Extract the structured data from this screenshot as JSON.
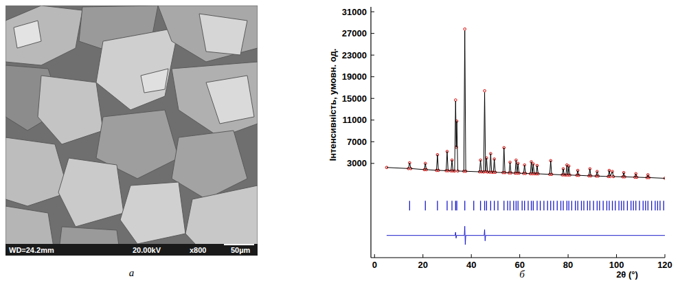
{
  "image": {
    "info": [
      "WD=24.2mm",
      "20.00kV",
      "x800",
      "50µm"
    ],
    "label": "а"
  },
  "chart_label": "б",
  "chart_data": {
    "type": "line",
    "y_label": "Інтенсивність, умовн. од.",
    "x_label": "2θ (°)",
    "xlim": [
      -1.5,
      120
    ],
    "xticks": [
      0,
      20,
      40,
      60,
      80,
      100,
      120
    ],
    "ylim": [
      -14400,
      31900
    ],
    "yticks": [
      3000,
      7000,
      11000,
      15000,
      19000,
      23000,
      27000,
      31000
    ],
    "grid": false,
    "series": [
      {
        "type": "scatter",
        "marker": "circle",
        "color": "#d40000",
        "x": [
          5,
          14.0,
          14.5,
          15.0,
          20.6,
          21.0,
          21.4,
          25.6,
          26.0,
          26.4,
          29.6,
          30.0,
          30.4,
          31.6,
          32.0,
          32.4,
          33.1,
          33.5,
          33.8,
          34.0,
          34.4,
          36.9,
          37.3,
          37.7,
          43.4,
          43.8,
          44.2,
          45.1,
          45.5,
          45.9,
          46.3,
          46.7,
          47.6,
          48.0,
          48.4,
          49.1,
          49.5,
          49.9,
          53.1,
          53.5,
          53.9,
          55.6,
          56.0,
          56.4,
          58.1,
          58.5,
          58.9,
          59.3,
          59.7,
          61.6,
          62.0,
          62.4,
          64.4,
          64.8,
          65.2,
          65.6,
          66.0,
          66.8,
          67.2,
          67.6,
          72.4,
          72.8,
          73.2,
          77.6,
          78.0,
          78.4,
          79.1,
          79.5,
          79.9,
          80.3,
          80.7,
          83.6,
          84.0,
          84.4,
          88.6,
          89.0,
          89.4,
          91.6,
          92.0,
          92.4,
          96.6,
          97.0,
          97.4,
          98.3,
          98.7,
          102.6,
          103.0,
          103.4,
          107.6,
          108.0,
          108.4,
          112.6,
          113.0,
          113.4,
          120
        ],
        "values": [
          2250,
          2050,
          3100,
          2050,
          1850,
          3000,
          1850,
          1720,
          4600,
          1720,
          1650,
          5200,
          1650,
          1620,
          3600,
          1620,
          1600,
          14700,
          6000,
          10800,
          1600,
          1550,
          27800,
          1550,
          1450,
          3600,
          1450,
          1420,
          16400,
          1500,
          4000,
          1400,
          1380,
          4800,
          1380,
          1360,
          3800,
          1360,
          1300,
          5900,
          1300,
          1250,
          3200,
          1250,
          1200,
          3600,
          1200,
          3000,
          1200,
          1150,
          2700,
          1150,
          1100,
          3300,
          1100,
          2900,
          1100,
          1080,
          2600,
          1080,
          980,
          3500,
          980,
          880,
          2000,
          880,
          860,
          2700,
          860,
          2500,
          850,
          800,
          1700,
          800,
          700,
          2000,
          700,
          660,
          1500,
          660,
          580,
          1700,
          580,
          1500,
          570,
          520,
          1300,
          520,
          450,
          1100,
          450,
          380,
          900,
          380,
          250
        ]
      },
      {
        "type": "line",
        "line_style": "solid",
        "color": "#000000",
        "x": [
          5,
          14.0,
          14.5,
          15.0,
          20.6,
          21.0,
          21.4,
          25.6,
          26.0,
          26.4,
          29.6,
          30.0,
          30.4,
          31.6,
          32.0,
          32.4,
          33.1,
          33.5,
          33.8,
          34.0,
          34.4,
          36.9,
          37.3,
          37.7,
          43.4,
          43.8,
          44.2,
          45.1,
          45.5,
          45.9,
          46.3,
          46.7,
          47.6,
          48.0,
          48.4,
          49.1,
          49.5,
          49.9,
          53.1,
          53.5,
          53.9,
          55.6,
          56.0,
          56.4,
          58.1,
          58.5,
          58.9,
          59.3,
          59.7,
          61.6,
          62.0,
          62.4,
          64.4,
          64.8,
          65.2,
          65.6,
          66.0,
          66.8,
          67.2,
          67.6,
          72.4,
          72.8,
          73.2,
          77.6,
          78.0,
          78.4,
          79.1,
          79.5,
          79.9,
          80.3,
          80.7,
          83.6,
          84.0,
          84.4,
          88.6,
          89.0,
          89.4,
          91.6,
          92.0,
          92.4,
          96.6,
          97.0,
          97.4,
          98.3,
          98.7,
          102.6,
          103.0,
          103.4,
          107.6,
          108.0,
          108.4,
          112.6,
          113.0,
          113.4,
          120
        ],
        "values": [
          2250,
          2050,
          3100,
          2050,
          1850,
          3000,
          1850,
          1720,
          4600,
          1720,
          1650,
          5200,
          1650,
          1620,
          3600,
          1620,
          1600,
          14500,
          6000,
          10800,
          1600,
          1550,
          27500,
          1550,
          1450,
          3600,
          1450,
          1420,
          16100,
          1500,
          4000,
          1400,
          1380,
          4800,
          1380,
          1360,
          3800,
          1360,
          1300,
          5900,
          1300,
          1250,
          3200,
          1250,
          1200,
          3600,
          1200,
          3000,
          1200,
          1150,
          2700,
          1150,
          1100,
          3300,
          1100,
          2900,
          1100,
          1080,
          2600,
          1080,
          980,
          3500,
          980,
          880,
          2000,
          880,
          860,
          2700,
          860,
          2500,
          850,
          800,
          1700,
          800,
          700,
          2000,
          700,
          660,
          1500,
          660,
          580,
          1700,
          580,
          1500,
          570,
          520,
          1300,
          520,
          450,
          1100,
          450,
          380,
          900,
          380,
          250
        ]
      },
      {
        "type": "scatter",
        "marker": "vline",
        "color": "#1a1acc",
        "x": [
          14.5,
          21,
          26,
          30,
          32,
          33.5,
          34,
          37.3,
          41,
          43.8,
          45.5,
          46.3,
          48,
          49.5,
          51,
          53.5,
          55,
          56,
          57.5,
          58.5,
          59.3,
          61,
          62,
          63.5,
          64.8,
          65.6,
          67.2,
          68.5,
          70,
          71.5,
          72.8,
          74,
          75.5,
          77,
          78,
          79.5,
          80.3,
          81.5,
          83,
          84,
          85.5,
          86.5,
          88,
          89,
          90.5,
          92,
          93,
          94.5,
          96,
          97,
          98.3,
          99.5,
          101,
          102,
          103,
          104.5,
          106,
          107,
          108,
          109.5,
          111,
          112,
          113,
          114.5,
          116,
          117,
          118,
          119.5
        ],
        "values": [
          -4800,
          -4800,
          -4800,
          -4800,
          -4800,
          -4800,
          -4800,
          -4800,
          -4800,
          -4800,
          -4800,
          -4800,
          -4800,
          -4800,
          -4800,
          -4800,
          -4800,
          -4800,
          -4800,
          -4800,
          -4800,
          -4800,
          -4800,
          -4800,
          -4800,
          -4800,
          -4800,
          -4800,
          -4800,
          -4800,
          -4800,
          -4800,
          -4800,
          -4800,
          -4800,
          -4800,
          -4800,
          -4800,
          -4800,
          -4800,
          -4800,
          -4800,
          -4800,
          -4800,
          -4800,
          -4800,
          -4800,
          -4800,
          -4800,
          -4800,
          -4800,
          -4800,
          -4800,
          -4800,
          -4800,
          -4800,
          -4800,
          -4800,
          -4800,
          -4800,
          -4800,
          -4800,
          -4800,
          -4800,
          -4800,
          -4800,
          -4800,
          -4800
        ]
      },
      {
        "type": "line",
        "line_style": "solid",
        "color": "#1a1acc",
        "x": [
          5,
          33.3,
          33.5,
          33.7,
          33.9,
          37.1,
          37.3,
          37.5,
          37.7,
          45.3,
          45.5,
          45.7,
          45.9,
          120
        ],
        "values": [
          -10300,
          -10300,
          -9700,
          -10800,
          -10300,
          -10300,
          -8600,
          -12000,
          -10300,
          -10300,
          -9200,
          -11300,
          -10300,
          -10300
        ]
      }
    ]
  }
}
